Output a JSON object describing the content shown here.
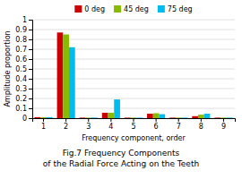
{
  "chart_data": {
    "type": "bar",
    "title": "Fig.7 Frequency Components\nof the Radial Force Acting on the Teeth",
    "x_label": "Frequency component, order",
    "y_label": "Amplitude proportion",
    "categories": [
      "1",
      "2",
      "3",
      "4",
      "5",
      "6",
      "7",
      "8",
      "9"
    ],
    "series": [
      {
        "name": "0 deg",
        "color": "#cc0000",
        "values": [
          0.01,
          0.87,
          0.005,
          0.055,
          0.005,
          0.045,
          0.005,
          0.02,
          0.005
        ]
      },
      {
        "name": "45 deg",
        "color": "#88bb00",
        "values": [
          0.01,
          0.85,
          0.005,
          0.055,
          0.005,
          0.05,
          0.005,
          0.035,
          0.005
        ]
      },
      {
        "name": "75 deg",
        "color": "#00bbee",
        "values": [
          0.01,
          0.72,
          0.005,
          0.19,
          0.005,
          0.04,
          0.005,
          0.045,
          0.005
        ]
      }
    ],
    "ylim": [
      0,
      1.0
    ],
    "yticks": [
      0,
      0.1,
      0.2,
      0.3,
      0.4,
      0.5,
      0.6,
      0.7,
      0.8,
      0.9,
      1
    ],
    "grid": true,
    "legend": "top"
  }
}
